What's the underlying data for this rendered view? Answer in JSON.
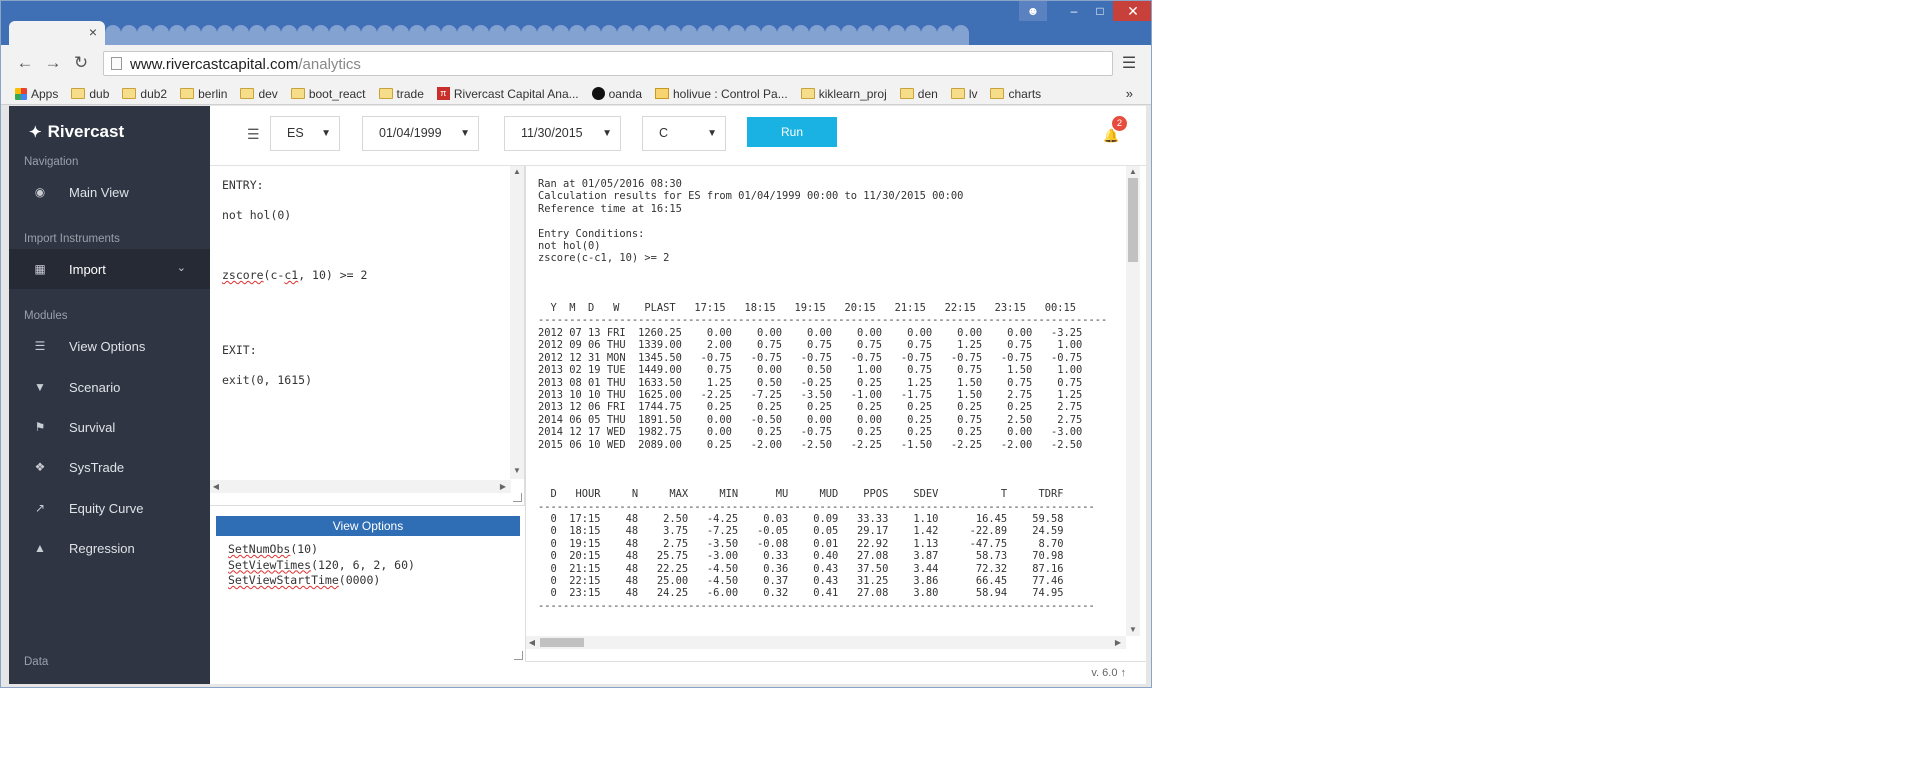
{
  "browser": {
    "tab_close": "×",
    "url_host": "www.rivercastcapital.com",
    "url_path": "/analytics",
    "window_controls": {
      "minimize": "–",
      "maximize": "□",
      "close": "✕"
    },
    "bookmarks": [
      {
        "label": "Apps",
        "icon": "apps-icon"
      },
      {
        "label": "dub",
        "icon": "folder-icon"
      },
      {
        "label": "dub2",
        "icon": "folder-icon"
      },
      {
        "label": "berlin",
        "icon": "folder-icon"
      },
      {
        "label": "dev",
        "icon": "folder-icon"
      },
      {
        "label": "boot_react",
        "icon": "folder-icon"
      },
      {
        "label": "trade",
        "icon": "folder-icon"
      },
      {
        "label": "Rivercast Capital Ana...",
        "icon": "rivercast-icon"
      },
      {
        "label": "oanda",
        "icon": "oanda-icon"
      },
      {
        "label": "holivue : Control Pa...",
        "icon": "mail-icon"
      },
      {
        "label": "kiklearn_proj",
        "icon": "folder-icon"
      },
      {
        "label": "den",
        "icon": "folder-icon"
      },
      {
        "label": "lv",
        "icon": "folder-icon"
      },
      {
        "label": "charts",
        "icon": "folder-icon"
      }
    ],
    "bookmarks_more": "»"
  },
  "sidebar": {
    "brand": "Rivercast",
    "sections": {
      "navigation": "Navigation",
      "import_instruments": "Import Instruments",
      "modules": "Modules",
      "data": "Data"
    },
    "items": {
      "main_view": "Main View",
      "import": "Import",
      "view_options": "View Options",
      "scenario": "Scenario",
      "survival": "Survival",
      "systrade": "SysTrade",
      "equity_curve": "Equity Curve",
      "regression": "Regression"
    }
  },
  "topbar": {
    "symbol": "ES",
    "start_date": "01/04/1999",
    "end_date": "11/30/2015",
    "field": "C",
    "run_label": "Run",
    "notifications": "2"
  },
  "editor": {
    "entry_label": "ENTRY:",
    "entry_line1": "not hol(0)",
    "entry_line2_a": "zscore",
    "entry_line2_b": "(c-",
    "entry_line2_c": "c1",
    "entry_line2_d": ", 10) >= 2",
    "exit_label": "EXIT:",
    "exit_line": "exit(0, 1615)"
  },
  "view_options": {
    "header": "View Options",
    "line1_fn": "SetNumObs",
    "line1_args": "(10)",
    "line2_fn": "SetViewTimes",
    "line2_args": "(120, 6, 2, 60)",
    "line3_fn": "SetViewStartTime",
    "line3_args": "(0000)"
  },
  "results": {
    "ran_at": "Ran at 01/05/2016 08:30",
    "calc_line": "Calculation results for ES from 01/04/1999 00:00 to 11/30/2015 00:00",
    "ref_time": "Reference time at 16:15",
    "entry_title": "Entry Conditions:",
    "cond1": "not hol(0)",
    "cond2": "zscore(c-c1, 10) >= 2",
    "table1_header": "  Y  M  D   W    PLAST   17:15   18:15   19:15   20:15   21:15   22:15   23:15   00:15",
    "rule": "-------------------------------------------------------------------------------------------",
    "table1_rows": [
      "2012 07 13 FRI  1260.25    0.00    0.00    0.00    0.00    0.00    0.00    0.00   -3.25",
      "2012 09 06 THU  1339.00    2.00    0.75    0.75    0.75    0.75    1.25    0.75    1.00",
      "2012 12 31 MON  1345.50   -0.75   -0.75   -0.75   -0.75   -0.75   -0.75   -0.75   -0.75",
      "2013 02 19 TUE  1449.00    0.75    0.00    0.50    1.00    0.75    0.75    1.50    1.00",
      "2013 08 01 THU  1633.50    1.25    0.50   -0.25    0.25    1.25    1.50    0.75    0.75",
      "2013 10 10 THU  1625.00   -2.25   -7.25   -3.50   -1.00   -1.75    1.50    2.75    1.25",
      "2013 12 06 FRI  1744.75    0.25    0.25    0.25    0.25    0.25    0.25    0.25    2.75",
      "2014 06 05 THU  1891.50    0.00   -0.50    0.00    0.00    0.25    0.75    2.50    2.75",
      "2014 12 17 WED  1982.75    0.00    0.25   -0.75    0.25    0.25    0.25    0.00   -3.00",
      "2015 06 10 WED  2089.00    0.25   -2.00   -2.50   -2.25   -1.50   -2.25   -2.00   -2.50"
    ],
    "table2_header": "  D   HOUR     N     MAX     MIN      MU     MUD    PPOS    SDEV          T     TDRF",
    "rule2": "-----------------------------------------------------------------------------------------",
    "table2_rows": [
      "  0  17:15    48    2.50   -4.25    0.03    0.09   33.33    1.10      16.45    59.58",
      "  0  18:15    48    3.75   -7.25   -0.05    0.05   29.17    1.42     -22.89    24.59",
      "  0  19:15    48    2.75   -3.50   -0.08    0.01   22.92    1.13     -47.75     8.70",
      "  0  20:15    48   25.75   -3.00    0.33    0.40   27.08    3.87      58.73    70.98",
      "  0  21:15    48   22.25   -4.50    0.36    0.43   37.50    3.44      72.32    87.16",
      "  0  22:15    48   25.00   -4.50    0.37    0.43   31.25    3.86      66.45    77.46",
      "  0  23:15    48   24.25   -6.00    0.32    0.41   27.08    3.80      58.94    74.95"
    ]
  },
  "footer": {
    "version": "v. 6.0"
  }
}
